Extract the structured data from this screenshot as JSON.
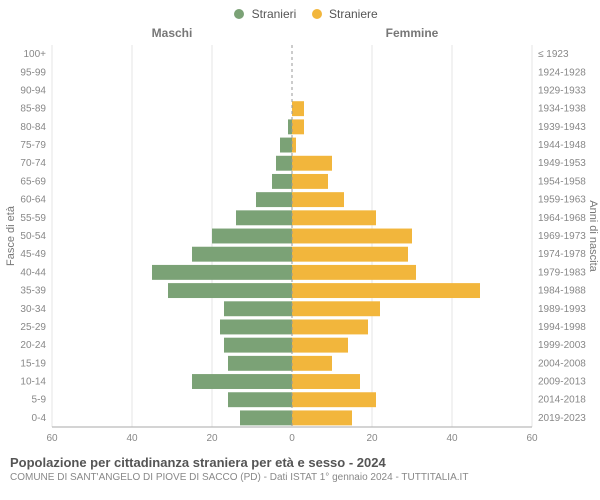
{
  "legend": {
    "male_label": "Stranieri",
    "female_label": "Straniere",
    "male_color": "#7ba276",
    "female_color": "#f2b63c"
  },
  "columns": {
    "left": "Maschi",
    "right": "Femmine"
  },
  "y_axis_left_title": "Fasce di età",
  "y_axis_right_title": "Anni di nascita",
  "footer": {
    "title": "Popolazione per cittadinanza straniera per età e sesso - 2024",
    "subtitle": "COMUNE DI SANT'ANGELO DI PIOVE DI SACCO (PD) - Dati ISTAT 1° gennaio 2024 - TUTTITALIA.IT"
  },
  "chart": {
    "type": "population-pyramid",
    "x_max": 60,
    "x_ticks": [
      0,
      20,
      40,
      60
    ],
    "bar_color_male": "#7ba276",
    "bar_color_female": "#f2b63c",
    "background_color": "#ffffff",
    "grid_color": "#e6e6e6",
    "zero_line_color": "#999999",
    "tick_font_size": 10,
    "axis_label_font_size": 11,
    "col_header_font_size": 12,
    "bar_gap_ratio": 0.18,
    "rows": [
      {
        "age": "100+",
        "birth": "≤ 1923",
        "m": 0,
        "f": 0
      },
      {
        "age": "95-99",
        "birth": "1924-1928",
        "m": 0,
        "f": 0
      },
      {
        "age": "90-94",
        "birth": "1929-1933",
        "m": 0,
        "f": 0
      },
      {
        "age": "85-89",
        "birth": "1934-1938",
        "m": 0,
        "f": 3
      },
      {
        "age": "80-84",
        "birth": "1939-1943",
        "m": 1,
        "f": 3
      },
      {
        "age": "75-79",
        "birth": "1944-1948",
        "m": 3,
        "f": 1
      },
      {
        "age": "70-74",
        "birth": "1949-1953",
        "m": 4,
        "f": 10
      },
      {
        "age": "65-69",
        "birth": "1954-1958",
        "m": 5,
        "f": 9
      },
      {
        "age": "60-64",
        "birth": "1959-1963",
        "m": 9,
        "f": 13
      },
      {
        "age": "55-59",
        "birth": "1964-1968",
        "m": 14,
        "f": 21
      },
      {
        "age": "50-54",
        "birth": "1969-1973",
        "m": 20,
        "f": 30
      },
      {
        "age": "45-49",
        "birth": "1974-1978",
        "m": 25,
        "f": 29
      },
      {
        "age": "40-44",
        "birth": "1979-1983",
        "m": 35,
        "f": 31
      },
      {
        "age": "35-39",
        "birth": "1984-1988",
        "m": 31,
        "f": 47
      },
      {
        "age": "30-34",
        "birth": "1989-1993",
        "m": 17,
        "f": 22
      },
      {
        "age": "25-29",
        "birth": "1994-1998",
        "m": 18,
        "f": 19
      },
      {
        "age": "20-24",
        "birth": "1999-2003",
        "m": 17,
        "f": 14
      },
      {
        "age": "15-19",
        "birth": "2004-2008",
        "m": 16,
        "f": 10
      },
      {
        "age": "10-14",
        "birth": "2009-2013",
        "m": 25,
        "f": 17
      },
      {
        "age": "5-9",
        "birth": "2014-2018",
        "m": 16,
        "f": 21
      },
      {
        "age": "0-4",
        "birth": "2019-2023",
        "m": 13,
        "f": 15
      }
    ]
  }
}
